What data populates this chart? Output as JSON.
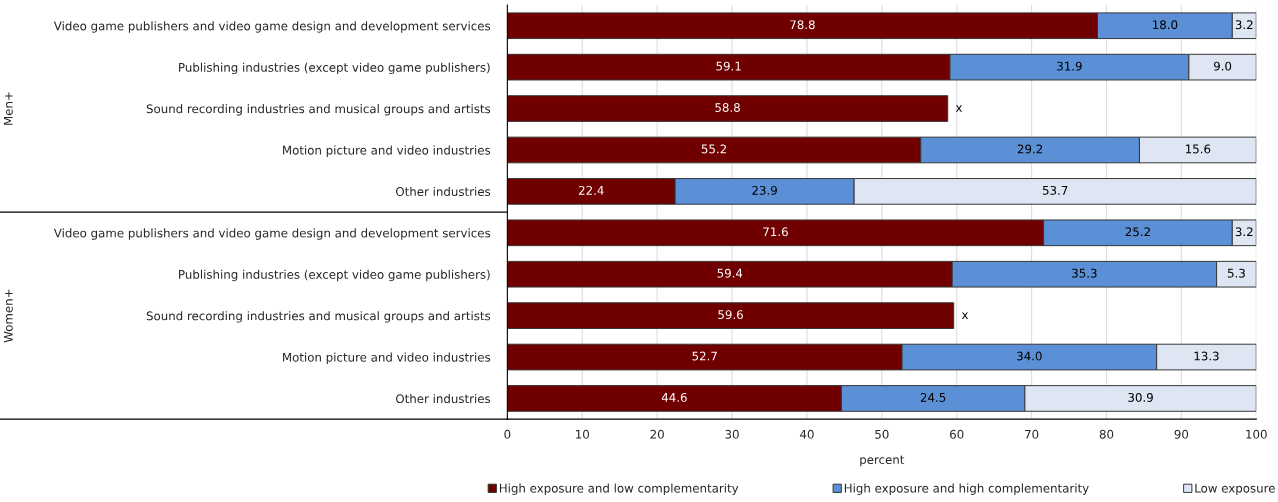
{
  "chart_data": {
    "type": "bar",
    "orientation": "horizontal",
    "stacked": true,
    "categories": [
      "Video game publishers and video game design and development services",
      "Publishing industries (except video game publishers)",
      "Sound recording industries and musical groups and artists",
      "Motion picture and video industries",
      "Other industries",
      "Video game publishers and video game design and development services",
      "Publishing industries (except video game publishers)",
      "Sound recording industries and musical groups and artists",
      "Motion picture and video industries",
      "Other industries"
    ],
    "series": [
      {
        "name": "High exposure and low complementarity",
        "color": "#700000",
        "values": [
          78.8,
          59.1,
          58.8,
          55.2,
          22.4,
          71.6,
          59.4,
          59.6,
          52.7,
          44.6
        ],
        "value_labels": [
          "78.8",
          "59.1",
          "58.8",
          "55.2",
          "22.4",
          "71.6",
          "59.4",
          "59.6",
          "52.7",
          "44.6"
        ]
      },
      {
        "name": "High exposure and high complementarity",
        "color": "#5b8fd6",
        "values": [
          18.0,
          31.9,
          null,
          29.2,
          23.9,
          25.2,
          35.3,
          null,
          34.0,
          24.5
        ],
        "value_labels": [
          "18.0",
          "31.9",
          "x",
          "29.2",
          "23.9",
          "25.2",
          "35.3",
          "x",
          "34.0",
          "24.5"
        ]
      },
      {
        "name": "Low exposure",
        "color": "#dde6f2",
        "values": [
          3.2,
          9.0,
          null,
          15.6,
          53.7,
          3.2,
          5.3,
          null,
          13.3,
          30.9
        ],
        "value_labels": [
          "3.2",
          "9.0",
          null,
          "15.6",
          "53.7",
          "3.2",
          "5.3",
          null,
          "13.3",
          "30.9"
        ]
      }
    ],
    "annotations": [
      "Men+",
      "Women+"
    ],
    "xlabel": "percent",
    "xlim": [
      0,
      100
    ],
    "xticks": [
      0,
      10,
      20,
      30,
      40,
      50,
      60,
      70,
      80,
      90,
      100
    ],
    "grid": "x",
    "legend": "bottom"
  }
}
